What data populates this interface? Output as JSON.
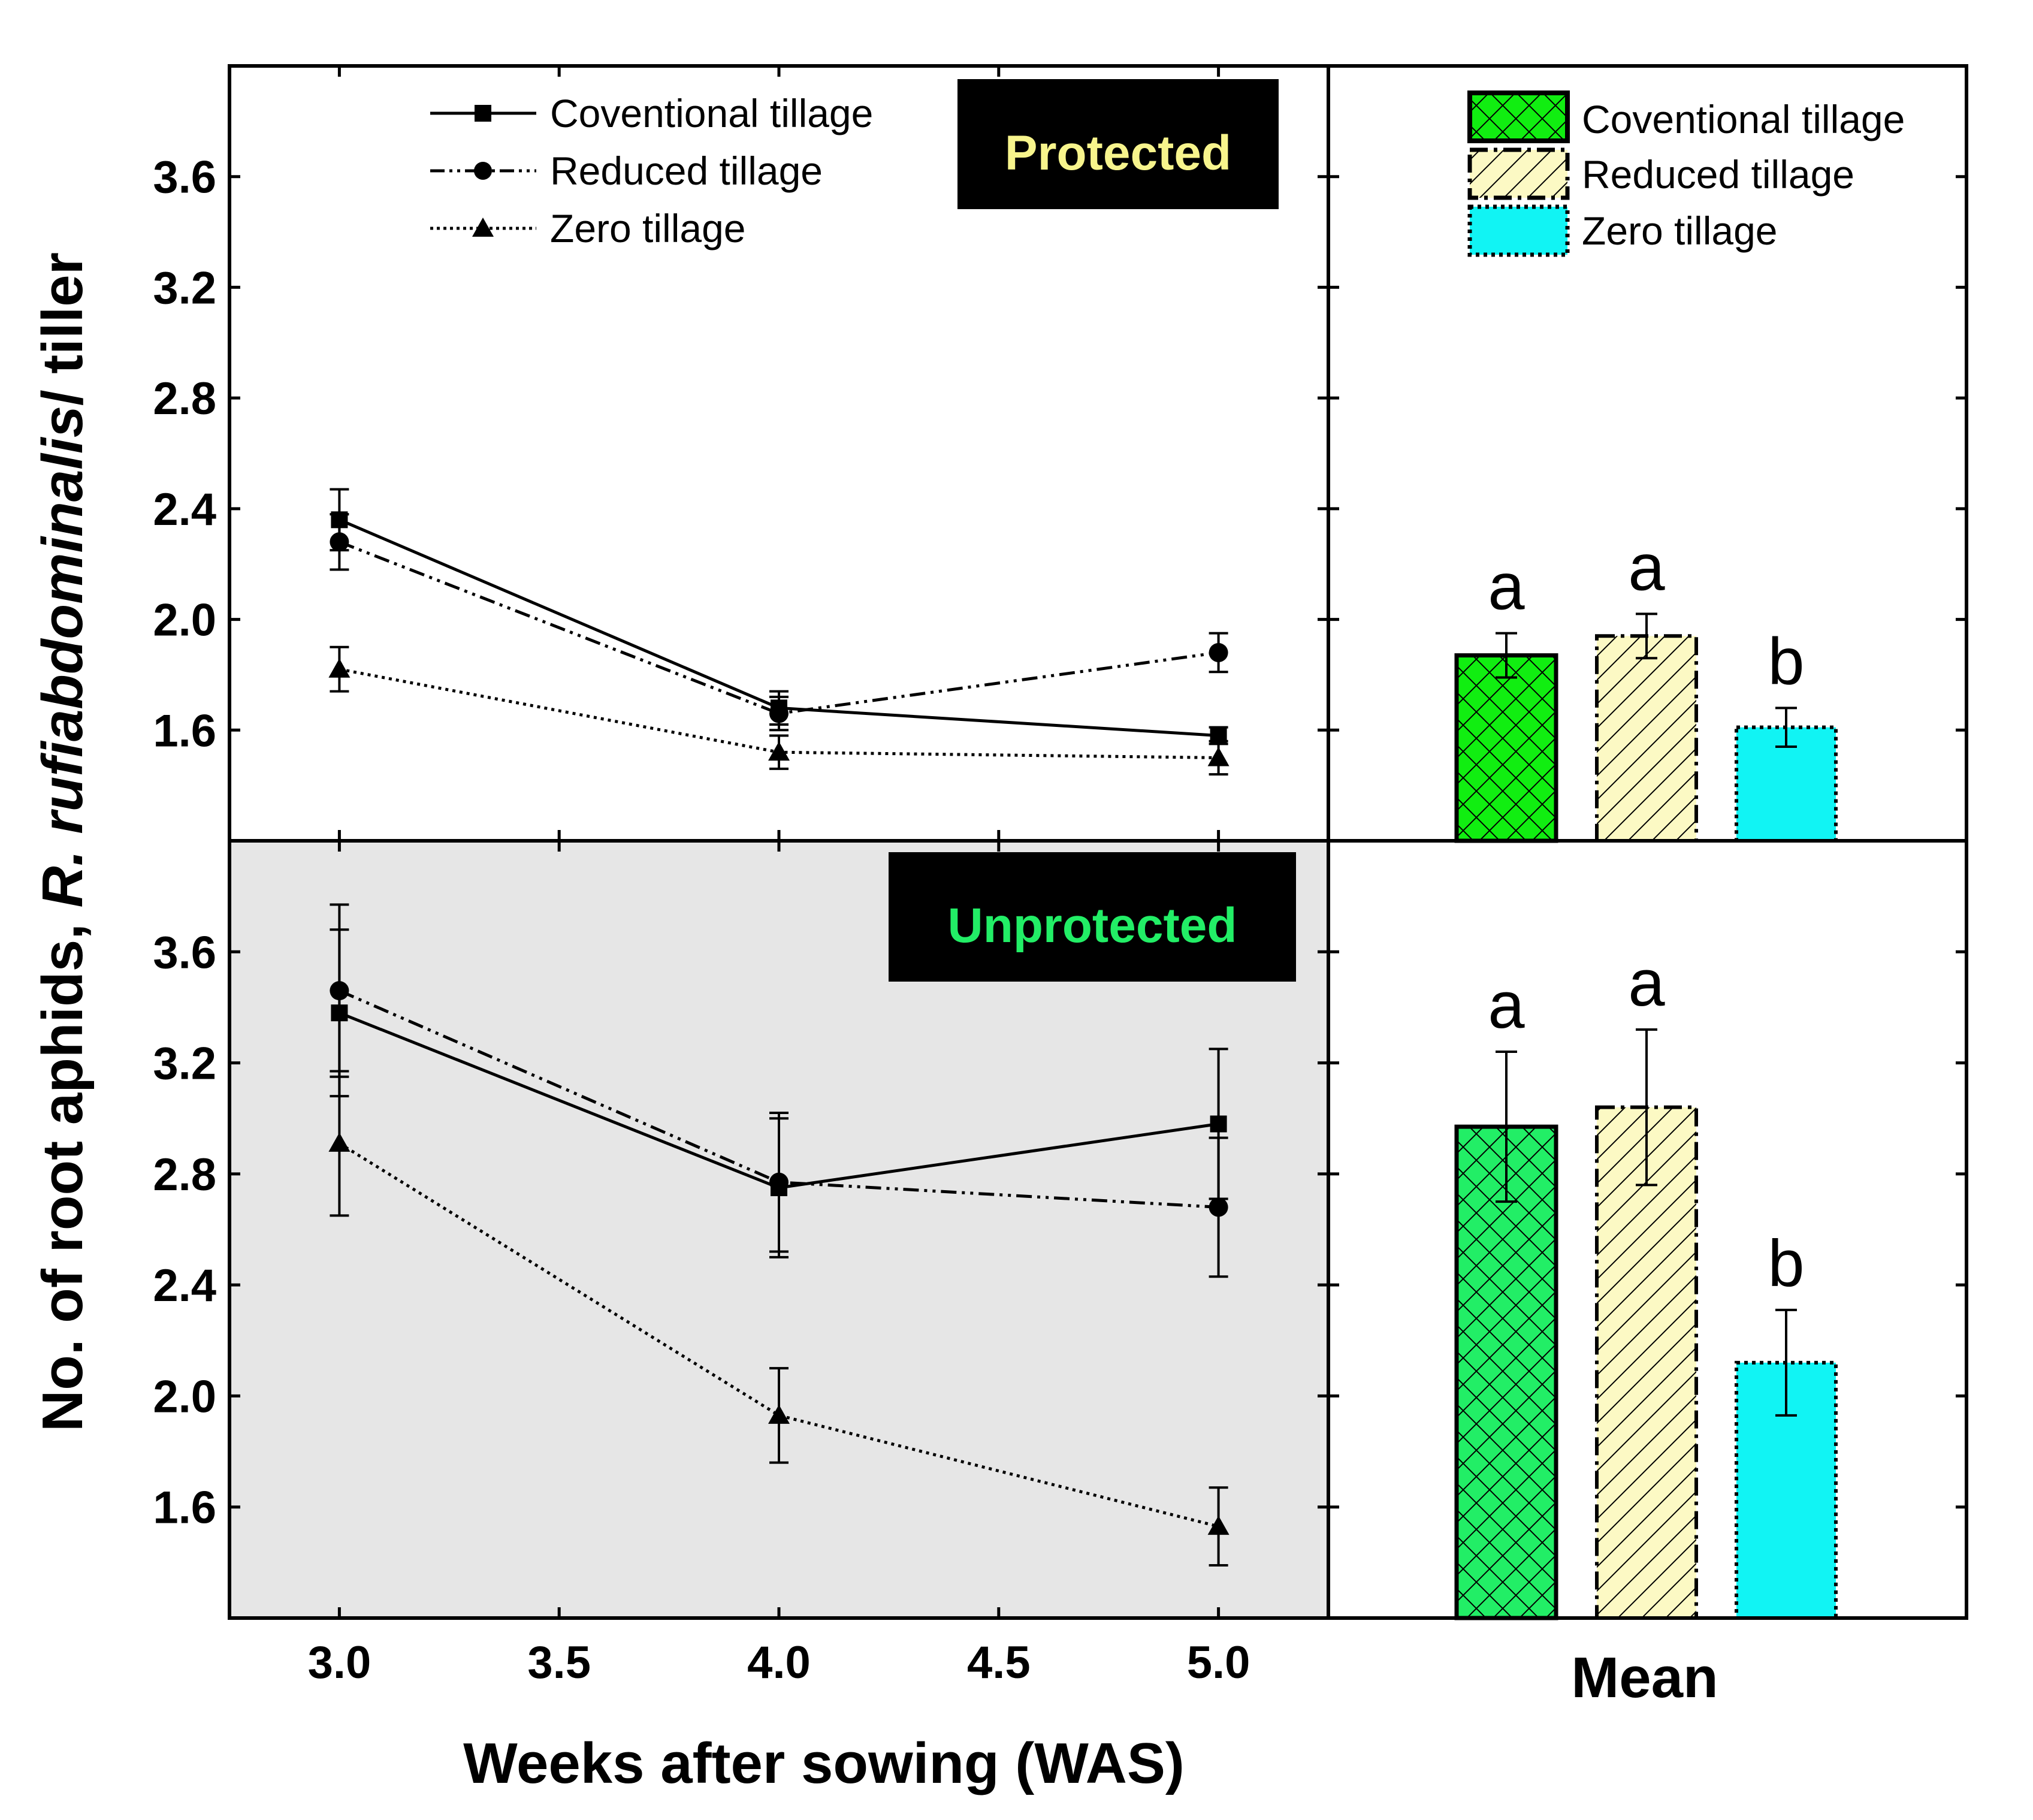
{
  "figure": {
    "ylabel_prefix": "No. of  root aphids, ",
    "ylabel_species": "R. rufiabdominalis",
    "ylabel_suffix": "/ tiller",
    "xlabel": "Weeks after sowing (WAS)",
    "mean_label": "Mean"
  },
  "colors": {
    "unprotected_bg": "#e6e6e6",
    "protected_tag_text": "#f7f48c",
    "unprotected_tag_text": "#22ee66",
    "bar_conventional_protected": "#11ee11",
    "bar_conventional_unprotected": "#22ee66",
    "bar_reduced": "#fcf9c4",
    "bar_zero": "#11f4f4"
  },
  "legend": {
    "line": [
      {
        "label": "Coventional tillage",
        "marker": "square",
        "dash": "solid"
      },
      {
        "label": "Reduced tillage",
        "marker": "circle",
        "dash": "dashdot"
      },
      {
        "label": "Zero tillage",
        "marker": "triangle",
        "dash": "dotted"
      }
    ],
    "bar": [
      {
        "label": "Coventional tillage"
      },
      {
        "label": "Reduced tillage"
      },
      {
        "label": "Zero tillage"
      }
    ]
  },
  "chart_data": [
    {
      "type": "line",
      "panel": "Protected",
      "x": [
        3.0,
        4.0,
        5.0
      ],
      "xlim": [
        2.75,
        5.25
      ],
      "ylim": [
        1.2,
        4.0
      ],
      "xticks": [
        "3.0",
        "3.5",
        "4.0",
        "4.5",
        "5.0"
      ],
      "yticks": [
        "1.6",
        "2.0",
        "2.4",
        "2.8",
        "3.2",
        "3.6"
      ],
      "series": [
        {
          "name": "Coventional tillage",
          "values": [
            2.36,
            1.68,
            1.58
          ],
          "errors": [
            0.11,
            0.06,
            0.03
          ]
        },
        {
          "name": "Reduced tillage",
          "values": [
            2.28,
            1.66,
            1.88
          ],
          "errors": [
            0.1,
            0.06,
            0.07
          ]
        },
        {
          "name": "Zero tillage",
          "values": [
            1.82,
            1.52,
            1.5
          ],
          "errors": [
            0.08,
            0.06,
            0.06
          ]
        }
      ]
    },
    {
      "type": "bar",
      "panel": "Protected mean",
      "categories": [
        "Coventional tillage",
        "Reduced tillage",
        "Zero tillage"
      ],
      "values": [
        1.87,
        1.94,
        1.61
      ],
      "errors": [
        0.08,
        0.08,
        0.07
      ],
      "letters": [
        "a",
        "a",
        "b"
      ],
      "ylim": [
        1.2,
        4.0
      ]
    },
    {
      "type": "line",
      "panel": "Unprotected",
      "x": [
        3.0,
        4.0,
        5.0
      ],
      "xlim": [
        2.75,
        5.25
      ],
      "ylim": [
        1.2,
        4.0
      ],
      "xticks": [
        "3.0",
        "3.5",
        "4.0",
        "4.5",
        "5.0"
      ],
      "yticks": [
        "1.6",
        "2.0",
        "2.4",
        "2.8",
        "3.2",
        "3.6"
      ],
      "series": [
        {
          "name": "Coventional tillage",
          "values": [
            3.38,
            2.75,
            2.98
          ],
          "errors": [
            0.3,
            0.25,
            0.27
          ]
        },
        {
          "name": "Reduced tillage",
          "values": [
            3.46,
            2.77,
            2.68
          ],
          "errors": [
            0.31,
            0.25,
            0.25
          ]
        },
        {
          "name": "Zero tillage",
          "values": [
            2.91,
            1.93,
            1.53
          ],
          "errors": [
            0.26,
            0.17,
            0.14
          ]
        }
      ]
    },
    {
      "type": "bar",
      "panel": "Unprotected mean",
      "categories": [
        "Coventional tillage",
        "Reduced tillage",
        "Zero tillage"
      ],
      "values": [
        2.97,
        3.04,
        2.12
      ],
      "errors": [
        0.27,
        0.28,
        0.19
      ],
      "letters": [
        "a",
        "a",
        "b"
      ],
      "ylim": [
        1.2,
        4.0
      ]
    }
  ]
}
